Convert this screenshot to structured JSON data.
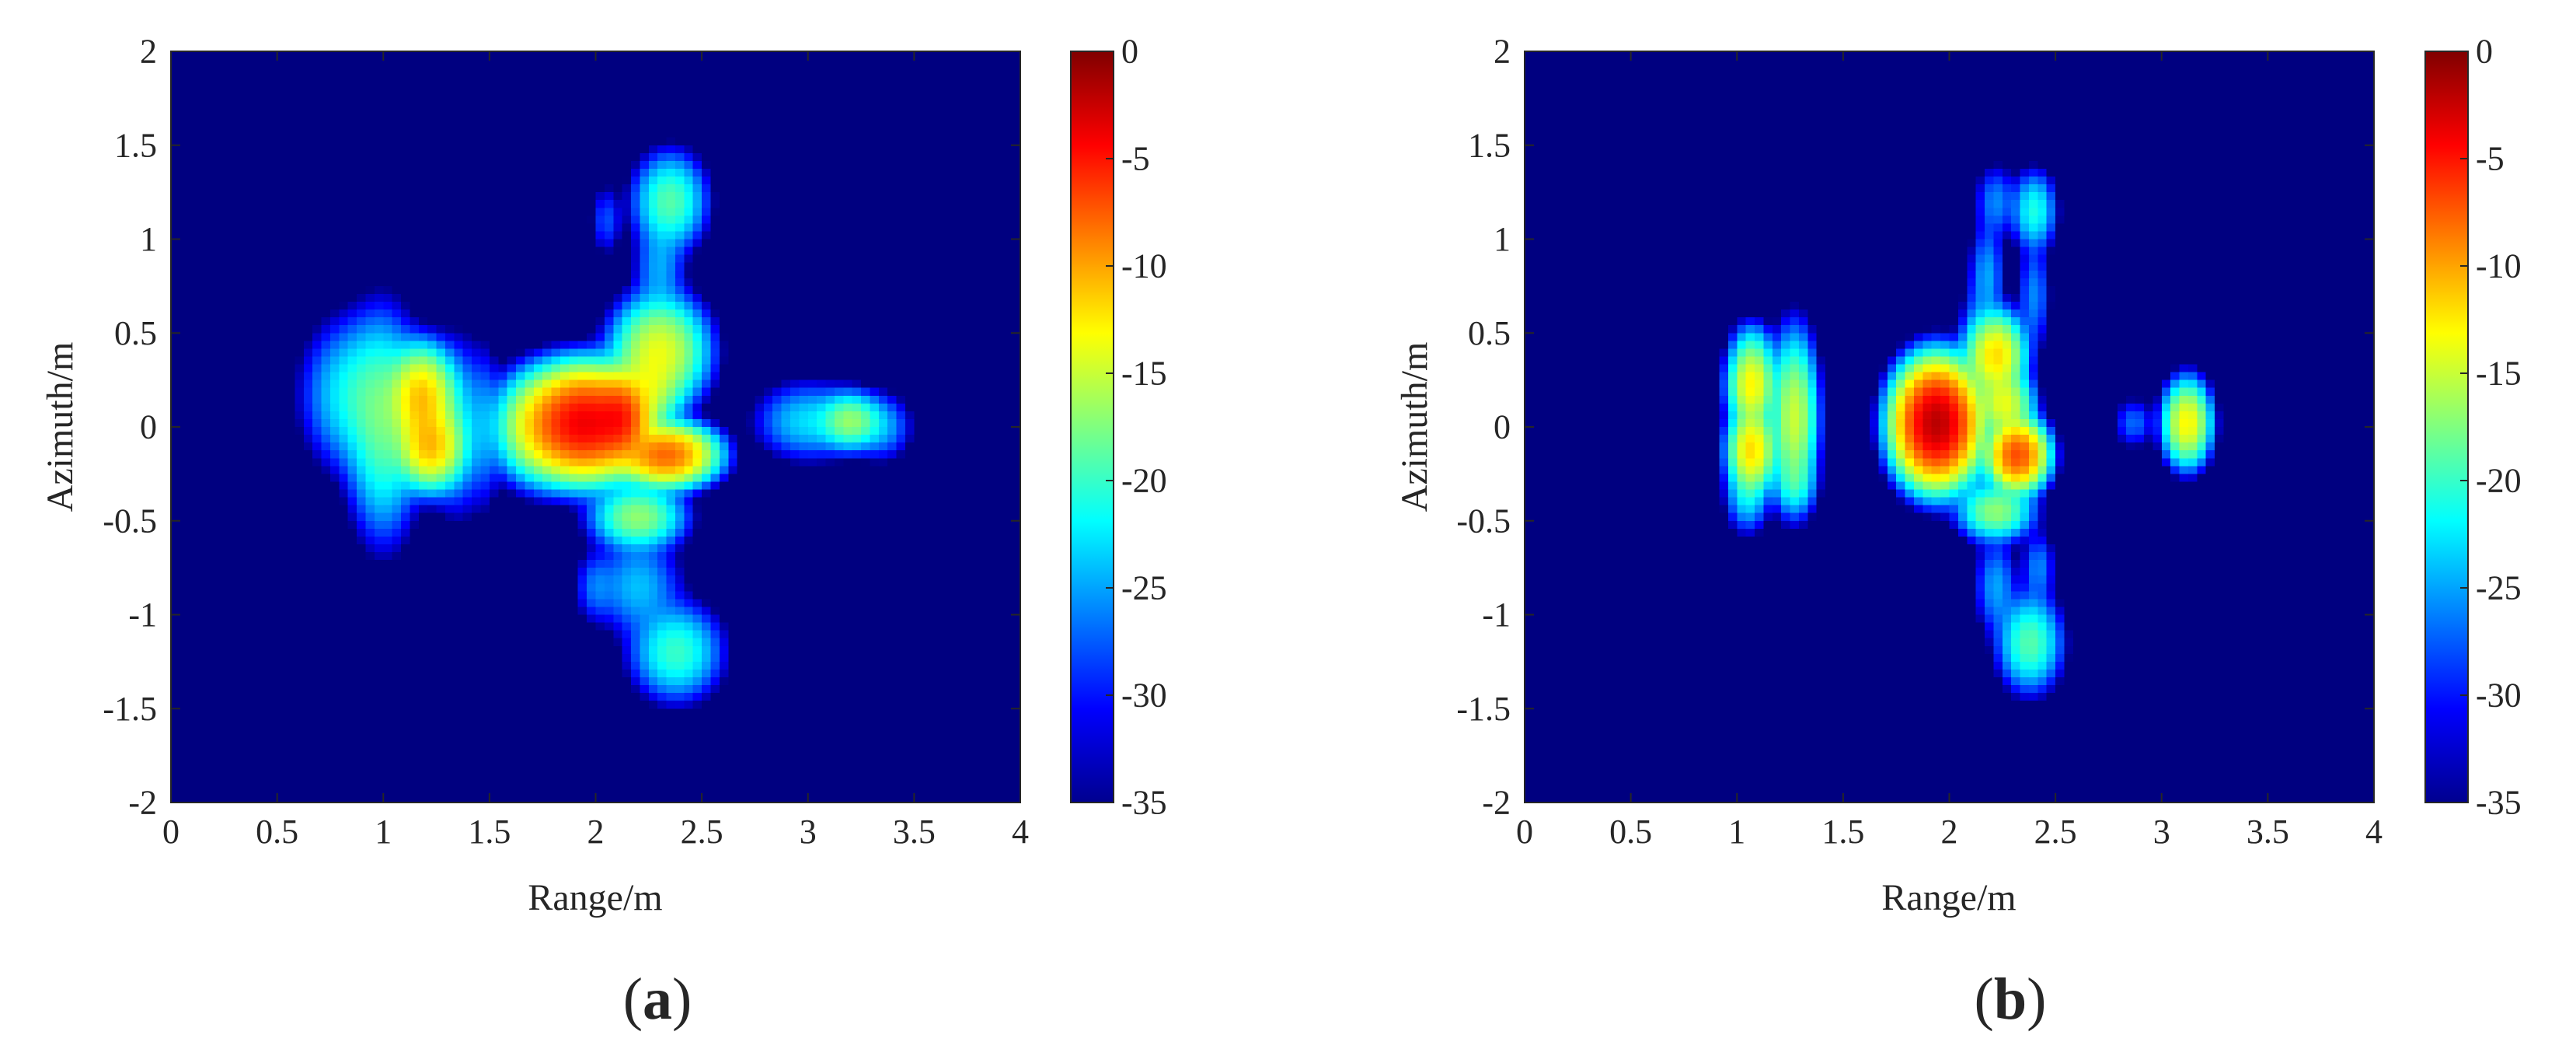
{
  "chart_data": [
    {
      "type": "heatmap",
      "panel_label": "(a)",
      "panel_letter": "a",
      "xlabel": "Range/m",
      "ylabel": "Azimuth/m",
      "xlim": [
        0,
        4
      ],
      "ylim": [
        -2,
        2
      ],
      "xticks": [
        "0",
        "0.5",
        "1",
        "1.5",
        "2",
        "2.5",
        "3",
        "3.5",
        "4"
      ],
      "yticks": [
        "2",
        "1.5",
        "1",
        "0.5",
        "0",
        "-0.5",
        "-1",
        "-1.5",
        "-2"
      ],
      "colorbar": {
        "min": -35,
        "max": 0,
        "colormap": "jet",
        "ticks": [
          "0",
          "-5",
          "-10",
          "-15",
          "-20",
          "-25",
          "-30",
          "-35"
        ]
      },
      "background_value_db": -35,
      "blobs": [
        {
          "x": 0.88,
          "y": 0.17,
          "sx": 0.12,
          "sy": 0.19,
          "db": -21
        },
        {
          "x": 1.0,
          "y": 0.0,
          "sx": 0.08,
          "sy": 0.27,
          "db": -19
        },
        {
          "x": 1.18,
          "y": 0.15,
          "sx": 0.07,
          "sy": 0.12,
          "db": -11
        },
        {
          "x": 1.22,
          "y": -0.1,
          "sx": 0.07,
          "sy": 0.1,
          "db": -11
        },
        {
          "x": 1.35,
          "y": 0.0,
          "sx": 0.07,
          "sy": 0.22,
          "db": -23
        },
        {
          "x": 1.48,
          "y": 0.0,
          "sx": 0.04,
          "sy": 0.22,
          "db": -27
        },
        {
          "x": 1.75,
          "y": 0.0,
          "sx": 0.1,
          "sy": 0.13,
          "db": -14
        },
        {
          "x": 1.95,
          "y": 0.02,
          "sx": 0.12,
          "sy": 0.12,
          "db": -4
        },
        {
          "x": 2.12,
          "y": 0.05,
          "sx": 0.06,
          "sy": 0.1,
          "db": -7
        },
        {
          "x": 2.3,
          "y": 0.4,
          "sx": 0.1,
          "sy": 0.13,
          "db": -14
        },
        {
          "x": 2.25,
          "y": 0.2,
          "sx": 0.07,
          "sy": 0.1,
          "db": -16
        },
        {
          "x": 2.33,
          "y": -0.15,
          "sx": 0.1,
          "sy": 0.07,
          "db": -8
        },
        {
          "x": 2.2,
          "y": -0.48,
          "sx": 0.1,
          "sy": 0.08,
          "db": -17
        },
        {
          "x": 2.35,
          "y": 1.2,
          "sx": 0.08,
          "sy": 0.12,
          "db": -19
        },
        {
          "x": 2.3,
          "y": 0.85,
          "sx": 0.06,
          "sy": 0.13,
          "db": -25
        },
        {
          "x": 2.05,
          "y": 1.1,
          "sx": 0.04,
          "sy": 0.1,
          "db": -28
        },
        {
          "x": 2.2,
          "y": -0.85,
          "sx": 0.1,
          "sy": 0.13,
          "db": -24
        },
        {
          "x": 2.38,
          "y": -1.2,
          "sx": 0.1,
          "sy": 0.12,
          "db": -20
        },
        {
          "x": 2.0,
          "y": -0.85,
          "sx": 0.05,
          "sy": 0.1,
          "db": -27
        },
        {
          "x": 3.0,
          "y": 0.03,
          "sx": 0.12,
          "sy": 0.1,
          "db": -23
        },
        {
          "x": 3.2,
          "y": 0.03,
          "sx": 0.07,
          "sy": 0.07,
          "db": -17
        },
        {
          "x": 3.35,
          "y": 0.0,
          "sx": 0.07,
          "sy": 0.09,
          "db": -25
        }
      ]
    },
    {
      "type": "heatmap",
      "panel_label": "(b)",
      "panel_letter": "b",
      "xlabel": "Range/m",
      "ylabel": "Azimuth/m",
      "xlim": [
        0,
        4
      ],
      "ylim": [
        -2,
        2
      ],
      "xticks": [
        "0",
        "0.5",
        "1",
        "1.5",
        "2",
        "2.5",
        "3",
        "3.5",
        "4"
      ],
      "yticks": [
        "2",
        "1.5",
        "1",
        "0.5",
        "0",
        "-0.5",
        "-1",
        "-1.5",
        "-2"
      ],
      "colorbar": {
        "min": -35,
        "max": 0,
        "colormap": "jet",
        "ticks": [
          "0",
          "-5",
          "-10",
          "-15",
          "-20",
          "-25",
          "-30",
          "-35"
        ]
      },
      "background_value_db": -35,
      "blobs": [
        {
          "x": 1.07,
          "y": 0.22,
          "sx": 0.05,
          "sy": 0.1,
          "db": -13
        },
        {
          "x": 1.07,
          "y": -0.12,
          "sx": 0.05,
          "sy": 0.1,
          "db": -12
        },
        {
          "x": 1.05,
          "y": -0.35,
          "sx": 0.05,
          "sy": 0.1,
          "db": -22
        },
        {
          "x": 1.07,
          "y": 0.4,
          "sx": 0.05,
          "sy": 0.08,
          "db": -22
        },
        {
          "x": 1.27,
          "y": 0.05,
          "sx": 0.05,
          "sy": 0.2,
          "db": -15
        },
        {
          "x": 1.27,
          "y": -0.3,
          "sx": 0.05,
          "sy": 0.08,
          "db": -22
        },
        {
          "x": 1.94,
          "y": 0.02,
          "sx": 0.08,
          "sy": 0.13,
          "db": -2
        },
        {
          "x": 2.22,
          "y": 0.38,
          "sx": 0.06,
          "sy": 0.1,
          "db": -12
        },
        {
          "x": 2.26,
          "y": 0.12,
          "sx": 0.06,
          "sy": 0.08,
          "db": -14
        },
        {
          "x": 2.32,
          "y": -0.15,
          "sx": 0.06,
          "sy": 0.08,
          "db": -7
        },
        {
          "x": 2.12,
          "y": 0.15,
          "sx": 0.04,
          "sy": 0.3,
          "db": -24
        },
        {
          "x": 2.22,
          "y": -0.45,
          "sx": 0.08,
          "sy": 0.07,
          "db": -17
        },
        {
          "x": 2.18,
          "y": 0.8,
          "sx": 0.04,
          "sy": 0.15,
          "db": -25
        },
        {
          "x": 2.22,
          "y": 1.2,
          "sx": 0.05,
          "sy": 0.1,
          "db": -26
        },
        {
          "x": 2.4,
          "y": 1.15,
          "sx": 0.05,
          "sy": 0.1,
          "db": -21
        },
        {
          "x": 2.4,
          "y": 0.7,
          "sx": 0.04,
          "sy": 0.15,
          "db": -26
        },
        {
          "x": 2.22,
          "y": -0.85,
          "sx": 0.05,
          "sy": 0.13,
          "db": -25
        },
        {
          "x": 2.38,
          "y": -1.15,
          "sx": 0.07,
          "sy": 0.12,
          "db": -19
        },
        {
          "x": 2.42,
          "y": -0.75,
          "sx": 0.04,
          "sy": 0.1,
          "db": -26
        },
        {
          "x": 2.87,
          "y": 0.02,
          "sx": 0.05,
          "sy": 0.07,
          "db": -27
        },
        {
          "x": 3.12,
          "y": 0.02,
          "sx": 0.05,
          "sy": 0.1,
          "db": -13
        }
      ]
    }
  ]
}
